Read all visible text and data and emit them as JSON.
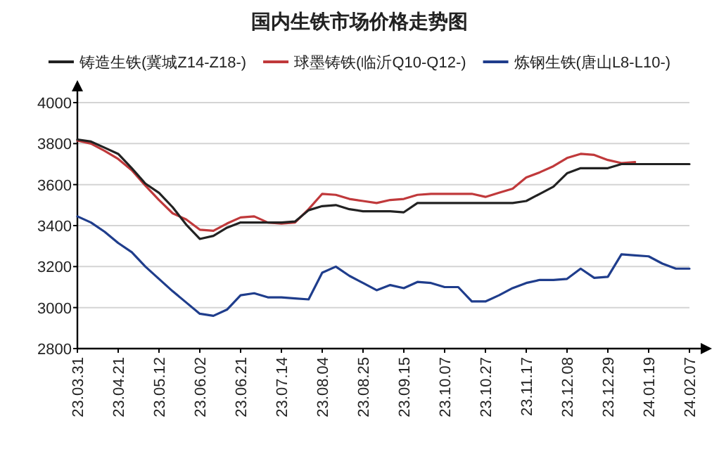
{
  "chart_data": {
    "type": "line",
    "title": "国内生铁市场价格走势图",
    "categories": [
      "23.03.31",
      null,
      null,
      "23.04.21",
      null,
      null,
      "23.05.12",
      null,
      null,
      "23.06.02",
      null,
      null,
      "23.06.21",
      null,
      null,
      "23.07.14",
      null,
      null,
      "23.08.04",
      null,
      null,
      "23.08.25",
      null,
      null,
      "23.09.15",
      null,
      null,
      "23.10.07",
      null,
      null,
      "23.10.27",
      null,
      null,
      "23.11.17",
      null,
      null,
      "23.12.08",
      null,
      null,
      "23.12.29",
      null,
      null,
      "24.01.19",
      null,
      null,
      "24.02.07"
    ],
    "series": [
      {
        "name": "铸造生铁(冀城Z14-Z18-)",
        "color": "#222222",
        "values": [
          3820,
          3810,
          3780,
          3750,
          3680,
          3605,
          3560,
          3490,
          3405,
          3335,
          3350,
          3390,
          3415,
          3415,
          3415,
          3415,
          3420,
          3475,
          3495,
          3500,
          3480,
          3470,
          3470,
          3470,
          3465,
          3510,
          3510,
          3510,
          3510,
          3510,
          3510,
          3510,
          3510,
          3520,
          3555,
          3590,
          3655,
          3680,
          3680,
          3680,
          3700,
          3700,
          3700,
          3700,
          3700,
          3700
        ]
      },
      {
        "name": "球墨铸铁(临沂Q10-Q12-)",
        "color": "#c0393b",
        "values": [
          3815,
          3800,
          3765,
          3725,
          3670,
          3595,
          3525,
          3460,
          3430,
          3380,
          3375,
          3410,
          3440,
          3445,
          3415,
          3410,
          3415,
          3480,
          3555,
          3550,
          3530,
          3520,
          3510,
          3525,
          3530,
          3550,
          3555,
          3555,
          3555,
          3555,
          3540,
          3560,
          3580,
          3635,
          3660,
          3690,
          3730,
          3750,
          3745,
          3720,
          3705,
          3710,
          null,
          null,
          null,
          null
        ]
      },
      {
        "name": "炼钢生铁(唐山L8-L10-)",
        "color": "#1f3d8c",
        "values": [
          3445,
          3415,
          3370,
          3315,
          3270,
          3200,
          3140,
          3080,
          3025,
          2970,
          2960,
          2990,
          3060,
          3070,
          3050,
          3050,
          3045,
          3040,
          3170,
          3200,
          3155,
          3120,
          3085,
          3110,
          3095,
          3125,
          3120,
          3100,
          3100,
          3030,
          3030,
          3060,
          3095,
          3120,
          3135,
          3135,
          3140,
          3190,
          3145,
          3150,
          3260,
          3255,
          3250,
          3215,
          3190,
          3190
        ]
      }
    ],
    "ylim": [
      2800,
      4000
    ],
    "yticks": [
      2800,
      3000,
      3200,
      3400,
      3600,
      3800,
      4000
    ],
    "grid": "y",
    "legend": "top"
  }
}
